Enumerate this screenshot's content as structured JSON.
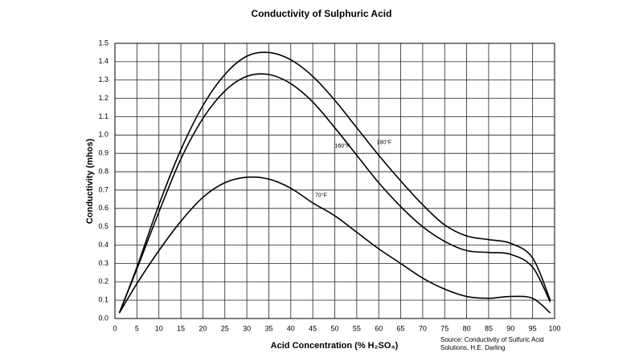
{
  "chart_data": {
    "type": "line",
    "title": "Conductivity of Sulphuric Acid",
    "x_label": "Acid Concentration (% H₂SO₄)",
    "y_label": "Conductivity (mhos)",
    "source": [
      "Source: Conductivity of Sulfuric Acid",
      "Solutions, H.E. Darling"
    ],
    "x": [
      1,
      5,
      10,
      15,
      20,
      25,
      30,
      35,
      40,
      45,
      50,
      55,
      60,
      65,
      70,
      75,
      80,
      85,
      90,
      95,
      99
    ],
    "series": [
      {
        "name": "180°F",
        "color": "#000000",
        "values": [
          0.03,
          0.28,
          0.62,
          0.92,
          1.16,
          1.33,
          1.43,
          1.45,
          1.41,
          1.32,
          1.19,
          1.04,
          0.89,
          0.75,
          0.62,
          0.51,
          0.45,
          0.43,
          0.41,
          0.33,
          0.1
        ]
      },
      {
        "name": "160°F",
        "color": "#000000",
        "values": [
          0.03,
          0.27,
          0.58,
          0.87,
          1.09,
          1.24,
          1.32,
          1.33,
          1.28,
          1.18,
          1.04,
          0.89,
          0.74,
          0.61,
          0.5,
          0.42,
          0.37,
          0.36,
          0.35,
          0.28,
          0.09
        ]
      },
      {
        "name": "70°F",
        "color": "#000000",
        "values": [
          0.03,
          0.19,
          0.37,
          0.53,
          0.66,
          0.74,
          0.77,
          0.76,
          0.71,
          0.63,
          0.56,
          0.47,
          0.38,
          0.3,
          0.22,
          0.16,
          0.12,
          0.11,
          0.12,
          0.11,
          0.03
        ]
      }
    ],
    "xlim": [
      0,
      100
    ],
    "xticks": [
      0,
      5,
      10,
      15,
      20,
      25,
      30,
      35,
      40,
      45,
      50,
      55,
      60,
      65,
      70,
      75,
      80,
      85,
      90,
      95,
      100
    ],
    "ylim": [
      0,
      1.5
    ],
    "yticks": [
      {
        "value": 0,
        "label": "0.0"
      },
      0.1,
      0.2,
      0.3,
      0.4,
      0.5,
      0.6,
      0.7,
      0.8,
      0.9,
      {
        "value": 1,
        "label": "1.0"
      },
      1.1,
      1.2,
      1.3,
      1.4,
      1.5
    ],
    "grid": true
  }
}
